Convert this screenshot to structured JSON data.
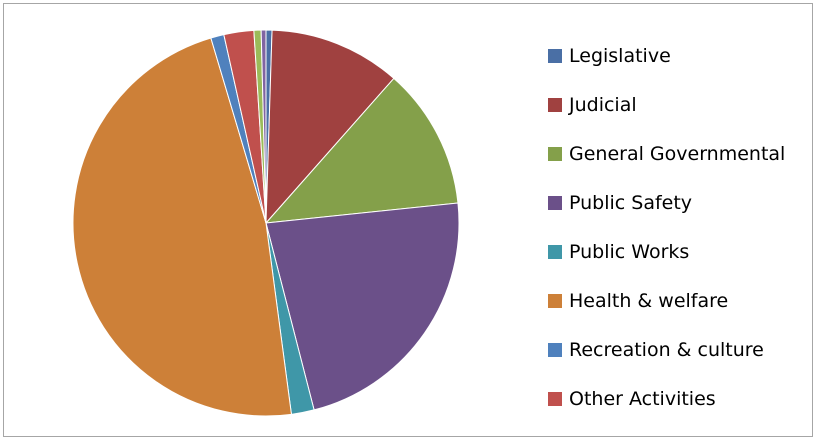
{
  "chart_data": {
    "type": "pie",
    "title": "",
    "legend_position": "right",
    "start_angle_deg": 0,
    "direction": "clockwise",
    "categories": [
      "Legislative",
      "Judicial",
      "General Governmental",
      "Public Safety",
      "Public Works",
      "Health & welfare",
      "Recreation & culture",
      "Other Activities",
      "",
      ""
    ],
    "values": [
      0.5,
      11.0,
      11.8,
      22.6,
      1.9,
      47.4,
      1.1,
      2.5,
      0.6,
      0.4
    ],
    "colors": [
      "#4a6fa5",
      "#a04140",
      "#84a04a",
      "#6b5089",
      "#3f97a8",
      "#cd8038",
      "#4f81bd",
      "#c0504d",
      "#9bbb59",
      "#8064a2"
    ]
  }
}
